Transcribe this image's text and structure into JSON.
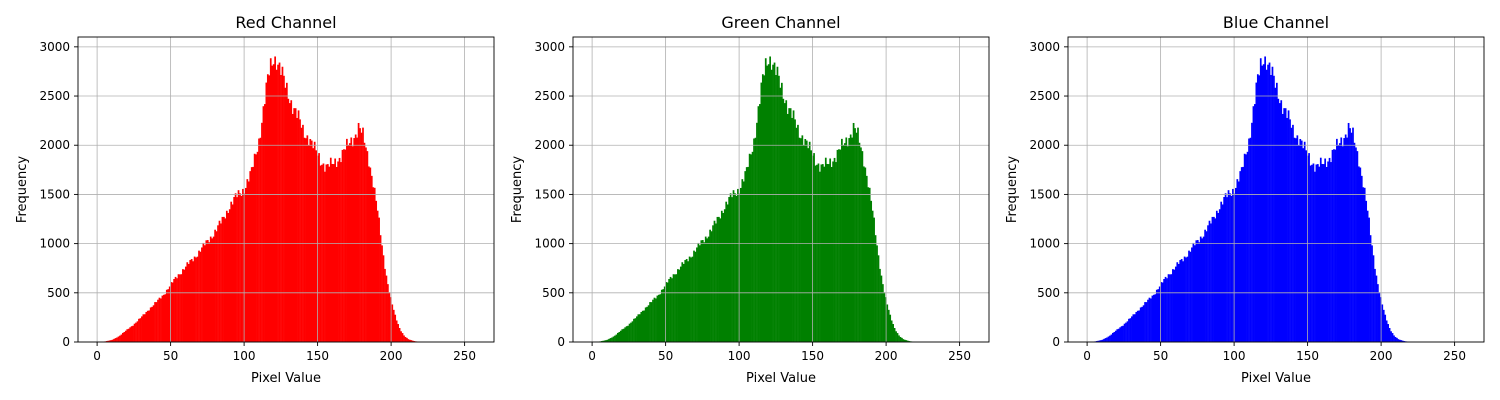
{
  "chart_data": [
    {
      "type": "bar",
      "title": "Red Channel",
      "xlabel": "Pixel Value",
      "ylabel": "Frequency",
      "color": "#ff0000",
      "xlim": [
        -13,
        270
      ],
      "ylim": [
        0,
        3100
      ],
      "xticks": [
        0,
        50,
        100,
        150,
        200,
        250
      ],
      "yticks": [
        0,
        500,
        1000,
        1500,
        2000,
        2500,
        3000
      ],
      "grid": true,
      "bins": 256,
      "keypoints": [
        [
          0,
          0
        ],
        [
          5,
          5
        ],
        [
          10,
          20
        ],
        [
          15,
          60
        ],
        [
          20,
          120
        ],
        [
          25,
          180
        ],
        [
          30,
          250
        ],
        [
          35,
          330
        ],
        [
          40,
          400
        ],
        [
          45,
          480
        ],
        [
          50,
          580
        ],
        [
          55,
          680
        ],
        [
          60,
          760
        ],
        [
          65,
          840
        ],
        [
          70,
          930
        ],
        [
          75,
          1020
        ],
        [
          80,
          1120
        ],
        [
          85,
          1230
        ],
        [
          90,
          1380
        ],
        [
          95,
          1480
        ],
        [
          100,
          1560
        ],
        [
          105,
          1720
        ],
        [
          110,
          2050
        ],
        [
          113,
          2350
        ],
        [
          116,
          2650
        ],
        [
          118,
          2800
        ],
        [
          120,
          2900
        ],
        [
          122,
          2880
        ],
        [
          125,
          2750
        ],
        [
          128,
          2600
        ],
        [
          132,
          2450
        ],
        [
          136,
          2300
        ],
        [
          140,
          2150
        ],
        [
          144,
          2080
        ],
        [
          148,
          1950
        ],
        [
          152,
          1850
        ],
        [
          156,
          1780
        ],
        [
          160,
          1800
        ],
        [
          165,
          1880
        ],
        [
          170,
          1980
        ],
        [
          175,
          2100
        ],
        [
          178,
          2180
        ],
        [
          181,
          2080
        ],
        [
          185,
          1850
        ],
        [
          188,
          1600
        ],
        [
          191,
          1300
        ],
        [
          194,
          950
        ],
        [
          197,
          650
        ],
        [
          200,
          420
        ],
        [
          203,
          250
        ],
        [
          206,
          130
        ],
        [
          209,
          60
        ],
        [
          212,
          25
        ],
        [
          216,
          8
        ],
        [
          220,
          2
        ],
        [
          225,
          0
        ],
        [
          255,
          0
        ]
      ]
    },
    {
      "type": "bar",
      "title": "Green Channel",
      "xlabel": "Pixel Value",
      "ylabel": "Frequency",
      "color": "#008000",
      "xlim": [
        -13,
        270
      ],
      "ylim": [
        0,
        3100
      ],
      "xticks": [
        0,
        50,
        100,
        150,
        200,
        250
      ],
      "yticks": [
        0,
        500,
        1000,
        1500,
        2000,
        2500,
        3000
      ],
      "grid": true,
      "bins": 256,
      "keypoints": [
        [
          0,
          0
        ],
        [
          5,
          5
        ],
        [
          10,
          20
        ],
        [
          15,
          60
        ],
        [
          20,
          120
        ],
        [
          25,
          180
        ],
        [
          30,
          250
        ],
        [
          35,
          330
        ],
        [
          40,
          400
        ],
        [
          45,
          480
        ],
        [
          50,
          580
        ],
        [
          55,
          680
        ],
        [
          60,
          760
        ],
        [
          65,
          840
        ],
        [
          70,
          930
        ],
        [
          75,
          1020
        ],
        [
          80,
          1120
        ],
        [
          85,
          1230
        ],
        [
          90,
          1380
        ],
        [
          95,
          1480
        ],
        [
          100,
          1560
        ],
        [
          105,
          1720
        ],
        [
          110,
          2050
        ],
        [
          113,
          2350
        ],
        [
          116,
          2650
        ],
        [
          118,
          2800
        ],
        [
          120,
          2900
        ],
        [
          122,
          2880
        ],
        [
          125,
          2750
        ],
        [
          128,
          2600
        ],
        [
          132,
          2450
        ],
        [
          136,
          2300
        ],
        [
          140,
          2150
        ],
        [
          144,
          2080
        ],
        [
          148,
          1950
        ],
        [
          152,
          1850
        ],
        [
          156,
          1780
        ],
        [
          160,
          1800
        ],
        [
          165,
          1880
        ],
        [
          170,
          1980
        ],
        [
          175,
          2100
        ],
        [
          178,
          2180
        ],
        [
          181,
          2080
        ],
        [
          185,
          1850
        ],
        [
          188,
          1600
        ],
        [
          191,
          1300
        ],
        [
          194,
          950
        ],
        [
          197,
          650
        ],
        [
          200,
          420
        ],
        [
          203,
          250
        ],
        [
          206,
          130
        ],
        [
          209,
          60
        ],
        [
          212,
          25
        ],
        [
          216,
          8
        ],
        [
          220,
          2
        ],
        [
          225,
          0
        ],
        [
          255,
          0
        ]
      ]
    },
    {
      "type": "bar",
      "title": "Blue Channel",
      "xlabel": "Pixel Value",
      "ylabel": "Frequency",
      "color": "#0000ff",
      "xlim": [
        -13,
        270
      ],
      "ylim": [
        0,
        3100
      ],
      "xticks": [
        0,
        50,
        100,
        150,
        200,
        250
      ],
      "yticks": [
        0,
        500,
        1000,
        1500,
        2000,
        2500,
        3000
      ],
      "grid": true,
      "bins": 256,
      "keypoints": [
        [
          0,
          0
        ],
        [
          5,
          5
        ],
        [
          10,
          20
        ],
        [
          15,
          60
        ],
        [
          20,
          120
        ],
        [
          25,
          180
        ],
        [
          30,
          250
        ],
        [
          35,
          330
        ],
        [
          40,
          400
        ],
        [
          45,
          480
        ],
        [
          50,
          580
        ],
        [
          55,
          680
        ],
        [
          60,
          760
        ],
        [
          65,
          840
        ],
        [
          70,
          930
        ],
        [
          75,
          1020
        ],
        [
          80,
          1120
        ],
        [
          85,
          1230
        ],
        [
          90,
          1380
        ],
        [
          95,
          1480
        ],
        [
          100,
          1560
        ],
        [
          105,
          1720
        ],
        [
          110,
          2050
        ],
        [
          113,
          2350
        ],
        [
          116,
          2650
        ],
        [
          118,
          2800
        ],
        [
          120,
          2900
        ],
        [
          122,
          2880
        ],
        [
          125,
          2750
        ],
        [
          128,
          2600
        ],
        [
          132,
          2450
        ],
        [
          136,
          2300
        ],
        [
          140,
          2150
        ],
        [
          144,
          2080
        ],
        [
          148,
          1950
        ],
        [
          152,
          1850
        ],
        [
          156,
          1780
        ],
        [
          160,
          1800
        ],
        [
          165,
          1880
        ],
        [
          170,
          1980
        ],
        [
          175,
          2100
        ],
        [
          178,
          2180
        ],
        [
          181,
          2080
        ],
        [
          185,
          1850
        ],
        [
          188,
          1600
        ],
        [
          191,
          1300
        ],
        [
          194,
          950
        ],
        [
          197,
          650
        ],
        [
          200,
          420
        ],
        [
          203,
          250
        ],
        [
          206,
          130
        ],
        [
          209,
          60
        ],
        [
          212,
          25
        ],
        [
          216,
          8
        ],
        [
          220,
          2
        ],
        [
          225,
          0
        ],
        [
          255,
          0
        ]
      ]
    }
  ]
}
